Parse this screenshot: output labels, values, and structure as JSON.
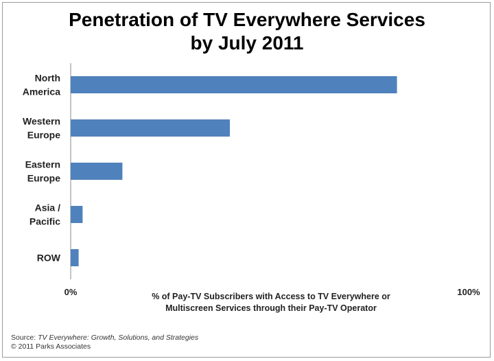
{
  "chart_data": {
    "type": "bar",
    "orientation": "horizontal",
    "title_lines": [
      "Penetration of TV Everywhere Services",
      "by July 2011"
    ],
    "categories": [
      [
        "North",
        "America"
      ],
      [
        "Western",
        "Europe"
      ],
      [
        "Eastern",
        "Europe"
      ],
      [
        "Asia /",
        "Pacific"
      ],
      [
        "ROW"
      ]
    ],
    "values": [
      82,
      40,
      13,
      3,
      2
    ],
    "xlim": [
      0,
      100
    ],
    "x_tick_labels": [
      "0%",
      "100%"
    ],
    "xlabel_lines": [
      "% of Pay-TV Subscribers with Access to TV Everywhere or",
      "Multiscreen Services through their Pay-TV Operator"
    ],
    "bar_color": "#4f81bd",
    "grid": false,
    "legend": "none"
  },
  "source": {
    "prefix": "Source: ",
    "title": "TV Everywhere: Growth, Solutions, and Strategies",
    "copyright": "© 2011 Parks Associates"
  }
}
